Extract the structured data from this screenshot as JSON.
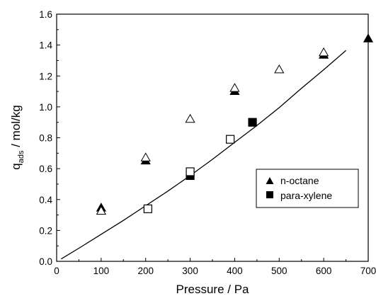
{
  "chart_data": {
    "type": "scatter",
    "xlabel": "Pressure / Pa",
    "ylabel_prefix": "q",
    "ylabel_sub": "ads",
    "ylabel_suffix": " / mol/kg",
    "xlim": [
      0,
      700
    ],
    "ylim": [
      0.0,
      1.6
    ],
    "x_ticks": [
      0,
      100,
      200,
      300,
      400,
      500,
      600,
      700
    ],
    "x_tick_labels": [
      "0",
      "100",
      "200",
      "300",
      "400",
      "500",
      "600",
      "700"
    ],
    "y_ticks": [
      0.0,
      0.2,
      0.4,
      0.6,
      0.8,
      1.0,
      1.2,
      1.4,
      1.6
    ],
    "y_tick_labels": [
      "0.0",
      "0.2",
      "0.4",
      "0.6",
      "0.8",
      "1.0",
      "1.2",
      "1.4",
      "1.6"
    ],
    "legend_position": "right-middle",
    "series": [
      {
        "name": "n-octane",
        "marker": "triangle",
        "filled": true,
        "points": [
          {
            "x": 100,
            "y": 0.345
          },
          {
            "x": 200,
            "y": 0.65
          },
          {
            "x": 400,
            "y": 1.1
          },
          {
            "x": 600,
            "y": 1.335
          },
          {
            "x": 700,
            "y": 1.44
          }
        ]
      },
      {
        "marker": "triangle",
        "filled": false,
        "points": [
          {
            "x": 100,
            "y": 0.325
          },
          {
            "x": 200,
            "y": 0.67
          },
          {
            "x": 300,
            "y": 0.92
          },
          {
            "x": 400,
            "y": 1.12
          },
          {
            "x": 500,
            "y": 1.24
          },
          {
            "x": 600,
            "y": 1.35
          }
        ]
      },
      {
        "name": "para-xylene",
        "marker": "square",
        "filled": true,
        "points": [
          {
            "x": 300,
            "y": 0.555
          },
          {
            "x": 440,
            "y": 0.9
          }
        ]
      },
      {
        "marker": "square",
        "filled": false,
        "points": [
          {
            "x": 205,
            "y": 0.34
          },
          {
            "x": 300,
            "y": 0.58
          },
          {
            "x": 390,
            "y": 0.79
          }
        ]
      },
      {
        "marker": "line",
        "points": [
          {
            "x": 10,
            "y": 0.015
          },
          {
            "x": 50,
            "y": 0.085
          },
          {
            "x": 100,
            "y": 0.175
          },
          {
            "x": 150,
            "y": 0.265
          },
          {
            "x": 200,
            "y": 0.36
          },
          {
            "x": 250,
            "y": 0.455
          },
          {
            "x": 300,
            "y": 0.555
          },
          {
            "x": 350,
            "y": 0.66
          },
          {
            "x": 400,
            "y": 0.77
          },
          {
            "x": 450,
            "y": 0.88
          },
          {
            "x": 500,
            "y": 0.995
          },
          {
            "x": 550,
            "y": 1.12
          },
          {
            "x": 600,
            "y": 1.24
          },
          {
            "x": 650,
            "y": 1.365
          }
        ]
      }
    ]
  }
}
